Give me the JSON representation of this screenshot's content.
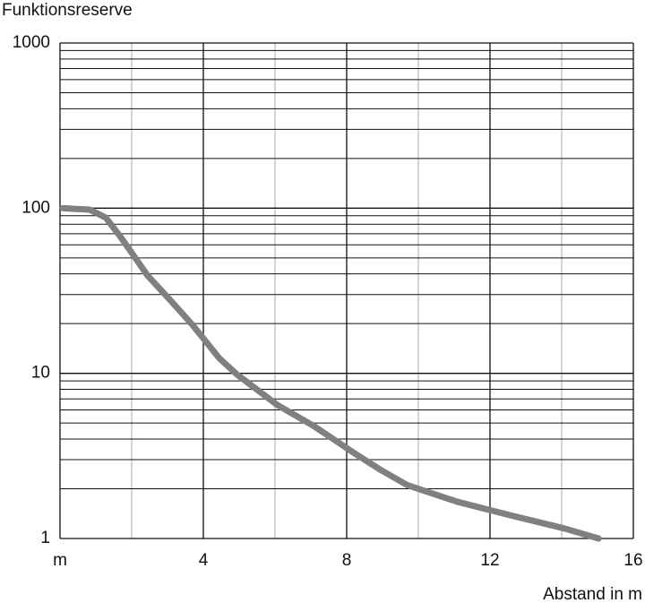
{
  "chart_data": {
    "type": "line",
    "y_label": "Funktionsreserve",
    "x_label": "Abstand in m",
    "x": [
      0.08,
      0.83,
      1.28,
      1.7,
      2.45,
      3.08,
      3.7,
      4.45,
      4.95,
      6.08,
      7.08,
      8.2,
      8.95,
      9.7,
      11.08,
      12.58,
      14.08,
      15.03
    ],
    "series": [
      {
        "color": "#808080",
        "values": [
          100,
          98,
          87.5,
          66.5,
          38.9,
          27.7,
          19.6,
          12.3,
          9.8,
          6.4,
          4.8,
          3.3,
          2.6,
          2.1,
          1.67,
          1.38,
          1.15,
          1.0
        ]
      }
    ],
    "xlim": [
      0,
      16
    ],
    "xticks": [
      {
        "value": 0,
        "label": "m"
      },
      4,
      8,
      12,
      16
    ],
    "x_minor_ticks": [
      2,
      6,
      10,
      14
    ],
    "ylim": [
      1,
      1000
    ],
    "yticks": [
      1,
      10,
      100,
      1000
    ],
    "y_minor_ticks": [
      2,
      3,
      4,
      5,
      6,
      7,
      8,
      9,
      20,
      30,
      40,
      50,
      60,
      70,
      80,
      90,
      200,
      300,
      400,
      500,
      600,
      700,
      800,
      900
    ],
    "y_log": true,
    "grid": true
  }
}
